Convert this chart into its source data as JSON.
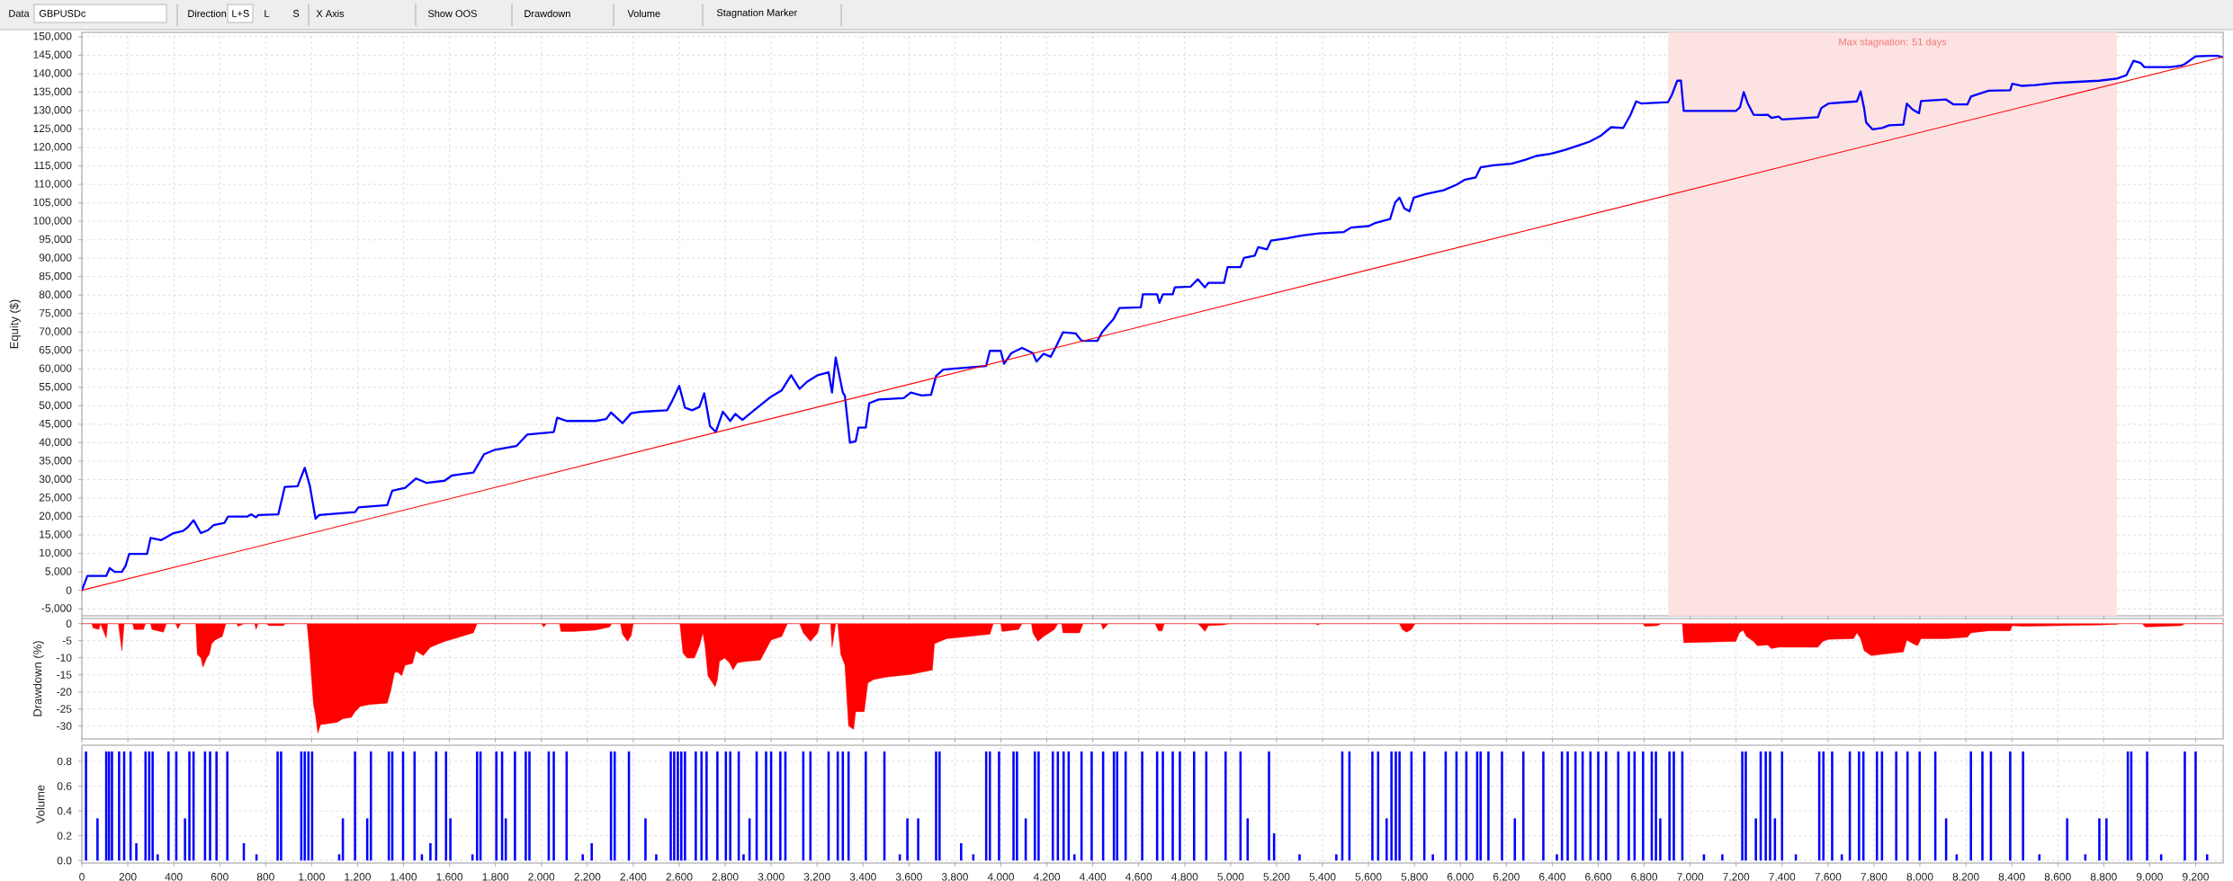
{
  "chart_data": [
    {
      "type": "line",
      "ylabel": "Equity ($)",
      "annotations": [
        "Data",
        "GBPUSDc",
        "Direction",
        "L+S",
        "L",
        "S",
        "X Axis",
        "Show OOS",
        "Drawdown",
        "Volume",
        "Stagnation Marker"
      ],
      "xlim": [
        0,
        9320
      ],
      "ylim": [
        -6900,
        151200
      ],
      "xticks": [
        0,
        200,
        400,
        600,
        800,
        1000,
        1200,
        1400,
        1600,
        1800,
        2000,
        2200,
        2400,
        2600,
        2800,
        3000,
        3200,
        3400,
        3600,
        3800,
        4000,
        4200,
        4400,
        4600,
        4800,
        5000,
        5200,
        5400,
        5600,
        5800,
        6000,
        6200,
        6400,
        6600,
        6800,
        7000,
        7200,
        7400,
        7600,
        7800,
        8000,
        8200,
        8400,
        8600,
        8800,
        9000,
        9200
      ],
      "yticks": [
        {
          "value": -5000,
          "label": "-5,000"
        },
        0,
        {
          "value": 5000,
          "label": "5,000"
        },
        {
          "value": 10000,
          "label": "10,000"
        },
        {
          "value": 15000,
          "label": "15,000"
        },
        {
          "value": 20000,
          "label": "20,000"
        },
        {
          "value": 25000,
          "label": "25,000"
        },
        {
          "value": 30000,
          "label": "30,000"
        },
        {
          "value": 35000,
          "label": "35,000"
        },
        {
          "value": 40000,
          "label": "40,000"
        },
        {
          "value": 45000,
          "label": "45,000"
        },
        {
          "value": 50000,
          "label": "50,000"
        },
        {
          "value": 55000,
          "label": "55,000"
        },
        {
          "value": 60000,
          "label": "60,000"
        },
        {
          "value": 65000,
          "label": "65,000"
        },
        {
          "value": 70000,
          "label": "70,000"
        },
        {
          "value": 75000,
          "label": "75,000"
        },
        {
          "value": 80000,
          "label": "80,000"
        },
        {
          "value": 85000,
          "label": "85,000"
        },
        {
          "value": 90000,
          "label": "90,000"
        },
        {
          "value": 95000,
          "label": "95,000"
        },
        {
          "value": 100000,
          "label": "100,000"
        },
        {
          "value": 105000,
          "label": "105,000"
        },
        {
          "value": 110000,
          "label": "110,000"
        },
        {
          "value": 115000,
          "label": "115,000"
        },
        {
          "value": 120000,
          "label": "120,000"
        },
        {
          "value": 125000,
          "label": "125,000"
        },
        {
          "value": 130000,
          "label": "130,000"
        },
        {
          "value": 135000,
          "label": "135,000"
        },
        {
          "value": 140000,
          "label": "140,000"
        },
        {
          "value": 145000,
          "label": "145,000"
        },
        {
          "value": 150000,
          "label": "150,000"
        }
      ],
      "grid": true,
      "tick_labels": "y",
      "bands": [
        {
          "axis": "x",
          "from": 6904,
          "to": 8858,
          "label": "Max stagnation: 51 days",
          "color": "#fde2e2"
        }
      ],
      "x": [
        0,
        24,
        106,
        121,
        143,
        174,
        190,
        206,
        284,
        299,
        346,
        399,
        440,
        461,
        486,
        518,
        549,
        574,
        621,
        636,
        721,
        736,
        758,
        768,
        855,
        883,
        939,
        970,
        992,
        1017,
        1033,
        1189,
        1204,
        1329,
        1351,
        1407,
        1454,
        1501,
        1579,
        1610,
        1704,
        1751,
        1798,
        1891,
        1938,
        2001,
        2054,
        2069,
        2110,
        2235,
        2282,
        2303,
        2353,
        2391,
        2438,
        2547,
        2569,
        2600,
        2625,
        2656,
        2688,
        2709,
        2734,
        2759,
        2790,
        2822,
        2844,
        2875,
        2922,
        3000,
        3046,
        3087,
        3124,
        3156,
        3203,
        3250,
        3265,
        3281,
        3312,
        3321,
        3343,
        3368,
        3380,
        3412,
        3427,
        3468,
        3577,
        3608,
        3655,
        3696,
        3718,
        3749,
        3936,
        3952,
        3999,
        4014,
        4046,
        4092,
        4139,
        4155,
        4186,
        4217,
        4242,
        4270,
        4326,
        4351,
        4420,
        4442,
        4489,
        4516,
        4609,
        4618,
        4680,
        4690,
        4705,
        4748,
        4757,
        4826,
        4857,
        4888,
        4903,
        4971,
        4987,
        5043,
        5058,
        5105,
        5120,
        5158,
        5176,
        5244,
        5307,
        5384,
        5493,
        5524,
        5601,
        5632,
        5694,
        5716,
        5735,
        5756,
        5778,
        5797,
        5849,
        5927,
        5983,
        6020,
        6067,
        6088,
        6144,
        6222,
        6284,
        6330,
        6392,
        6454,
        6516,
        6563,
        6609,
        6656,
        6709,
        6740,
        6765,
        6789,
        6904,
        6920,
        6944,
        6960,
        6972,
        7199,
        7217,
        7233,
        7251,
        7276,
        7307,
        7338,
        7354,
        7385,
        7400,
        7556,
        7571,
        7602,
        7726,
        7742,
        7757,
        7766,
        7794,
        7835,
        7866,
        7928,
        7943,
        7968,
        7996,
        8005,
        8114,
        8145,
        8207,
        8222,
        8269,
        8300,
        8393,
        8402,
        8446,
        8502,
        8595,
        8781,
        8858,
        8899,
        8930,
        8961,
        8976,
        9091,
        9138,
        9153,
        9200,
        9293,
        9317
      ],
      "series": [
        {
          "color": "#0000ff",
          "values": [
            0,
            3900,
            3900,
            6000,
            5000,
            5000,
            6600,
            9900,
            9900,
            14200,
            13600,
            15500,
            16100,
            17100,
            19000,
            15500,
            16300,
            17700,
            18300,
            20000,
            20000,
            20600,
            19800,
            20400,
            20600,
            28000,
            28200,
            33200,
            28400,
            19400,
            20400,
            21200,
            22500,
            23100,
            27000,
            27800,
            30300,
            29100,
            29700,
            31100,
            31900,
            36900,
            38100,
            39100,
            42200,
            42600,
            42900,
            46800,
            45900,
            45900,
            46400,
            48200,
            45300,
            48000,
            48400,
            48800,
            51300,
            55400,
            49500,
            48800,
            49700,
            53400,
            44500,
            42900,
            48400,
            45900,
            47800,
            46200,
            48600,
            52500,
            54200,
            58300,
            54600,
            56500,
            58300,
            59100,
            53600,
            63100,
            53600,
            52700,
            40000,
            40400,
            44100,
            44100,
            50700,
            51700,
            52100,
            53600,
            52800,
            53000,
            58100,
            59800,
            60800,
            64900,
            64900,
            61400,
            64300,
            65700,
            64300,
            62000,
            64100,
            63300,
            66300,
            69900,
            69600,
            67600,
            67600,
            70100,
            73400,
            76500,
            76700,
            80200,
            80200,
            77900,
            80200,
            80200,
            82100,
            82300,
            84300,
            82100,
            83300,
            83300,
            87600,
            87600,
            90100,
            90700,
            93000,
            92400,
            94800,
            95400,
            96100,
            96700,
            97100,
            98300,
            98700,
            99600,
            100600,
            105100,
            106400,
            103500,
            102700,
            106400,
            107400,
            108400,
            109900,
            111300,
            111900,
            114600,
            115200,
            115600,
            116700,
            117700,
            118300,
            119300,
            120600,
            121600,
            123100,
            125500,
            125300,
            128800,
            132500,
            131900,
            132300,
            134200,
            138100,
            138100,
            129900,
            129900,
            130900,
            135000,
            131900,
            128900,
            128800,
            128900,
            128000,
            128400,
            127600,
            128200,
            130700,
            131900,
            132500,
            135200,
            130700,
            126800,
            124900,
            125300,
            126000,
            126200,
            131900,
            130300,
            129300,
            132600,
            133000,
            131700,
            131700,
            133800,
            134800,
            135400,
            135500,
            137300,
            136700,
            136900,
            137500,
            138100,
            138700,
            139600,
            143500,
            142900,
            141800,
            141800,
            142200,
            142600,
            144700,
            144900,
            144500
          ]
        },
        {
          "type": "line",
          "color": "#ff0000",
          "x": [
            0,
            9317
          ],
          "values": [
            0,
            144500
          ]
        }
      ]
    },
    {
      "type": "area",
      "ylabel": "Drawdown (%)",
      "color": "#ff0000",
      "xlim": [
        0,
        9320
      ],
      "ylim": [
        -33.8,
        1.5
      ],
      "xticks": [
        0,
        200,
        400,
        600,
        800,
        1000,
        1200,
        1400,
        1600,
        1800,
        2000,
        2200,
        2400,
        2600,
        2800,
        3000,
        3200,
        3400,
        3600,
        3800,
        4000,
        4200,
        4400,
        4600,
        4800,
        5000,
        5200,
        5400,
        5600,
        5800,
        6000,
        6200,
        6400,
        6600,
        6800,
        7000,
        7200,
        7400,
        7600,
        7800,
        8000,
        8200,
        8400,
        8600,
        8800,
        9000,
        9200
      ],
      "yticks": [
        -30,
        -25,
        -20,
        -15,
        -10,
        -5,
        0
      ],
      "grid": true,
      "tick_labels": "y",
      "x": [
        0,
        43,
        49,
        74,
        81,
        106,
        112,
        159,
        174,
        184,
        221,
        227,
        268,
        277,
        299,
        305,
        355,
        368,
        408,
        418,
        430,
        496,
        502,
        518,
        527,
        543,
        555,
        565,
        580,
        611,
        627,
        674,
        680,
        705,
        752,
        758,
        767,
        805,
        814,
        877,
        886,
        980,
        992,
        1008,
        1017,
        1027,
        1039,
        1064,
        1111,
        1136,
        1173,
        1189,
        1211,
        1251,
        1329,
        1345,
        1361,
        1376,
        1392,
        1407,
        1439,
        1454,
        1486,
        1517,
        1579,
        1642,
        1704,
        1720,
        2001,
        2010,
        2022,
        2079,
        2085,
        2141,
        2235,
        2297,
        2306,
        2344,
        2353,
        2375,
        2391,
        2400,
        2603,
        2616,
        2634,
        2666,
        2688,
        2703,
        2712,
        2725,
        2756,
        2766,
        2775,
        2797,
        2819,
        2834,
        2853,
        2891,
        2953,
        3000,
        3046,
        3071,
        3124,
        3140,
        3171,
        3203,
        3212,
        3259,
        3265,
        3281,
        3290,
        3303,
        3321,
        3337,
        3359,
        3368,
        3405,
        3421,
        3446,
        3499,
        3608,
        3702,
        3711,
        3764,
        3858,
        3952,
        3967,
        3999,
        4005,
        4077,
        4092,
        4133,
        4139,
        4161,
        4186,
        4233,
        4248,
        4264,
        4270,
        4342,
        4358,
        4436,
        4445,
        4467,
        4671,
        4686,
        4702,
        4711,
        4857,
        4872,
        4888,
        4903,
        4965,
        4996,
        5369,
        5378,
        5390,
        5735,
        5747,
        5766,
        5787,
        5803,
        6795,
        6802,
        6858,
        6873,
        6966,
        6972,
        7199,
        7214,
        7230,
        7245,
        7276,
        7292,
        7338,
        7354,
        7385,
        7556,
        7577,
        7602,
        7711,
        7726,
        7742,
        7757,
        7788,
        7835,
        7928,
        7943,
        7968,
        7990,
        8005,
        8114,
        8207,
        8222,
        8300,
        8393,
        8402,
        8446,
        8781,
        8858,
        8868,
        8967,
        8982,
        9138,
        9153,
        9317
      ],
      "values": [
        0,
        0,
        -1.3,
        -1.7,
        0,
        -4.2,
        0,
        0,
        -8,
        0,
        0,
        -1.7,
        -1.7,
        0,
        0,
        -1.7,
        -2.5,
        0,
        0,
        -1.5,
        0,
        0,
        -9,
        -10.1,
        -12.8,
        -10.1,
        -9,
        -5.9,
        -4.8,
        -3.8,
        0,
        0,
        -0.8,
        0,
        0,
        -1.7,
        0,
        0,
        -0.6,
        -0.6,
        0,
        0,
        -9,
        -23.7,
        -26.9,
        -32.1,
        -29.6,
        -29.4,
        -28.9,
        -27.9,
        -27.5,
        -25.8,
        -24.3,
        -23.7,
        -23.3,
        -19.5,
        -14.3,
        -14.3,
        -15.3,
        -12.2,
        -11.7,
        -8,
        -9.4,
        -6.9,
        -5.2,
        -4,
        -2.7,
        0,
        0,
        -1,
        0,
        0,
        -2.3,
        -2.3,
        -1.9,
        -1,
        0,
        0,
        -3.1,
        -5.2,
        -3.5,
        0,
        0,
        -8.6,
        -10.1,
        -10.1,
        -6.5,
        -2.7,
        -6.5,
        -15.3,
        -18.5,
        -16.4,
        -11.1,
        -10.1,
        -11.5,
        -13.6,
        -11.5,
        -11.1,
        -10.7,
        -4.8,
        -3.8,
        0,
        0,
        -2.7,
        -5.2,
        -2.7,
        0,
        0,
        -6.9,
        0,
        0,
        -9,
        -12.2,
        -30,
        -31,
        -25.8,
        -25.8,
        -17.4,
        -16.4,
        -15.7,
        -14.9,
        -13.6,
        -5.9,
        -4.4,
        -3.8,
        -3.1,
        0,
        0,
        -2.3,
        -1.7,
        0,
        0,
        -2.7,
        -5.2,
        -3.8,
        -1.7,
        0,
        0,
        -2.7,
        -2.7,
        0,
        0,
        -1.7,
        0,
        0,
        -2.1,
        -2.1,
        0,
        0,
        -1,
        -2.3,
        -0.6,
        -0.4,
        0,
        0,
        -0.4,
        0,
        0,
        -1.7,
        -2.5,
        -1.7,
        0,
        0,
        -0.8,
        -0.6,
        0,
        0,
        -5.6,
        -5.2,
        -2.7,
        -1.9,
        -3.8,
        -5.2,
        -6.5,
        -6.3,
        -7.3,
        -6.9,
        -6.9,
        -5.2,
        -4.6,
        -4.4,
        -2.7,
        -4.4,
        -7.9,
        -9.4,
        -9,
        -8.3,
        -4.8,
        -5.8,
        -6.5,
        -4.4,
        -4.4,
        -4,
        -2.7,
        -2.1,
        -2.1,
        -0.6,
        -0.8,
        -0.4,
        -0.2,
        0,
        0,
        -1,
        -0.6,
        0,
        0
      ]
    },
    {
      "type": "bar",
      "ylabel": "Volume",
      "color": "#0000ff",
      "xlim": [
        0,
        9320
      ],
      "ylim": [
        -0.02,
        0.93
      ],
      "xticks": [
        0,
        200,
        400,
        600,
        800,
        {
          "value": 1000,
          "label": "1,000"
        },
        {
          "value": 1200,
          "label": "1,200"
        },
        {
          "value": 1400,
          "label": "1,400"
        },
        {
          "value": 1600,
          "label": "1,600"
        },
        {
          "value": 1800,
          "label": "1,800"
        },
        {
          "value": 2000,
          "label": "2,000"
        },
        {
          "value": 2200,
          "label": "2,200"
        },
        {
          "value": 2400,
          "label": "2,400"
        },
        {
          "value": 2600,
          "label": "2,600"
        },
        {
          "value": 2800,
          "label": "2,800"
        },
        {
          "value": 3000,
          "label": "3,000"
        },
        {
          "value": 3200,
          "label": "3,200"
        },
        {
          "value": 3400,
          "label": "3,400"
        },
        {
          "value": 3600,
          "label": "3,600"
        },
        {
          "value": 3800,
          "label": "3,800"
        },
        {
          "value": 4000,
          "label": "4,000"
        },
        {
          "value": 4200,
          "label": "4,200"
        },
        {
          "value": 4400,
          "label": "4,400"
        },
        {
          "value": 4600,
          "label": "4,600"
        },
        {
          "value": 4800,
          "label": "4,800"
        },
        {
          "value": 5000,
          "label": "5,000"
        },
        {
          "value": 5200,
          "label": "5,200"
        },
        {
          "value": 5400,
          "label": "5,400"
        },
        {
          "value": 5600,
          "label": "5,600"
        },
        {
          "value": 5800,
          "label": "5,800"
        },
        {
          "value": 6000,
          "label": "6,000"
        },
        {
          "value": 6200,
          "label": "6,200"
        },
        {
          "value": 6400,
          "label": "6,400"
        },
        {
          "value": 6600,
          "label": "6,600"
        },
        {
          "value": 6800,
          "label": "6,800"
        },
        {
          "value": 7000,
          "label": "7,000"
        },
        {
          "value": 7200,
          "label": "7,200"
        },
        {
          "value": 7400,
          "label": "7,400"
        },
        {
          "value": 7600,
          "label": "7,600"
        },
        {
          "value": 7800,
          "label": "7,800"
        },
        {
          "value": 8000,
          "label": "8,000"
        },
        {
          "value": 8200,
          "label": "8,200"
        },
        {
          "value": 8400,
          "label": "8,400"
        },
        {
          "value": 8600,
          "label": "8,600"
        },
        {
          "value": 8800,
          "label": "8,800"
        },
        {
          "value": 9000,
          "label": "9,000"
        },
        {
          "value": 9200,
          "label": "9,200"
        }
      ],
      "yticks": [
        {
          "value": 0,
          "label": "0.0"
        },
        0.2,
        0.4,
        0.6,
        0.8
      ],
      "grid": true,
      "x": [
        18,
        68,
        106,
        118,
        131,
        162,
        184,
        212,
        237,
        277,
        293,
        308,
        330,
        377,
        411,
        449,
        468,
        486,
        536,
        558,
        586,
        633,
        705,
        760,
        852,
        867,
        955,
        970,
        986,
        1002,
        1120,
        1136,
        1189,
        1242,
        1258,
        1336,
        1351,
        1398,
        1448,
        1480,
        1517,
        1542,
        1585,
        1604,
        1700,
        1720,
        1735,
        1804,
        1829,
        1845,
        1885,
        1932,
        1948,
        2032,
        2054,
        2110,
        2180,
        2219,
        2303,
        2319,
        2381,
        2453,
        2500,
        2563,
        2578,
        2594,
        2609,
        2625,
        2672,
        2697,
        2719,
        2766,
        2803,
        2822,
        2859,
        2880,
        2906,
        2937,
        2978,
        3000,
        3040,
        3062,
        3140,
        3171,
        3250,
        3290,
        3312,
        3337,
        3412,
        3493,
        3560,
        3593,
        3640,
        3718,
        3733,
        3827,
        3880,
        3936,
        3952,
        3992,
        4055,
        4070,
        4108,
        4148,
        4164,
        4226,
        4248,
        4273,
        4295,
        4320,
        4351,
        4395,
        4445,
        4492,
        4506,
        4543,
        4615,
        4680,
        4705,
        4748,
        4779,
        4841,
        4894,
        4978,
        5043,
        5074,
        5167,
        5189,
        5300,
        5460,
        5486,
        5517,
        5617,
        5642,
        5679,
        5700,
        5719,
        5735,
        5787,
        5843,
        5880,
        5936,
        5983,
        6026,
        6073,
        6088,
        6122,
        6181,
        6237,
        6274,
        6361,
        6420,
        6442,
        6467,
        6501,
        6532,
        6566,
        6600,
        6634,
        6687,
        6733,
        6758,
        6795,
        6833,
        6851,
        6870,
        6910,
        6929,
        6966,
        7060,
        7140,
        7227,
        7242,
        7286,
        7307,
        7329,
        7348,
        7369,
        7400,
        7460,
        7562,
        7580,
        7618,
        7660,
        7695,
        7735,
        7754,
        7813,
        7835,
        7897,
        7946,
        7999,
        8067,
        8114,
        8160,
        8222,
        8272,
        8309,
        8393,
        8449,
        8520,
        8641,
        8720,
        8781,
        8812,
        8905,
        8920,
        8989,
        9050,
        9153,
        9200,
        9250
      ],
      "values": [
        0.88,
        0.34,
        0.88,
        0.88,
        0.88,
        0.88,
        0.88,
        0.88,
        0.14,
        0.88,
        0.88,
        0.88,
        0.05,
        0.88,
        0.88,
        0.34,
        0.88,
        0.88,
        0.88,
        0.88,
        0.88,
        0.88,
        0.14,
        0.05,
        0.88,
        0.88,
        0.88,
        0.88,
        0.88,
        0.88,
        0.05,
        0.34,
        0.88,
        0.34,
        0.88,
        0.88,
        0.88,
        0.88,
        0.88,
        0.05,
        0.14,
        0.88,
        0.88,
        0.34,
        0.05,
        0.88,
        0.88,
        0.88,
        0.88,
        0.34,
        0.88,
        0.88,
        0.88,
        0.88,
        0.88,
        0.88,
        0.05,
        0.14,
        0.88,
        0.88,
        0.88,
        0.34,
        0.05,
        0.88,
        0.88,
        0.88,
        0.88,
        0.88,
        0.88,
        0.88,
        0.88,
        0.88,
        0.88,
        0.88,
        0.88,
        0.05,
        0.34,
        0.88,
        0.88,
        0.88,
        0.88,
        0.88,
        0.88,
        0.88,
        0.88,
        0.88,
        0.88,
        0.88,
        0.88,
        0.88,
        0.05,
        0.34,
        0.34,
        0.88,
        0.88,
        0.14,
        0.05,
        0.88,
        0.88,
        0.88,
        0.88,
        0.88,
        0.34,
        0.88,
        0.88,
        0.88,
        0.88,
        0.88,
        0.88,
        0.05,
        0.88,
        0.88,
        0.88,
        0.88,
        0.88,
        0.88,
        0.88,
        0.88,
        0.88,
        0.88,
        0.88,
        0.88,
        0.88,
        0.88,
        0.88,
        0.34,
        0.88,
        0.22,
        0.05,
        0.05,
        0.88,
        0.88,
        0.88,
        0.88,
        0.34,
        0.88,
        0.88,
        0.88,
        0.88,
        0.88,
        0.05,
        0.88,
        0.88,
        0.88,
        0.88,
        0.88,
        0.88,
        0.88,
        0.34,
        0.88,
        0.88,
        0.05,
        0.88,
        0.88,
        0.88,
        0.88,
        0.88,
        0.88,
        0.88,
        0.88,
        0.88,
        0.88,
        0.88,
        0.88,
        0.88,
        0.34,
        0.88,
        0.88,
        0.88,
        0.05,
        0.05,
        0.88,
        0.88,
        0.34,
        0.88,
        0.88,
        0.88,
        0.34,
        0.88,
        0.05,
        0.88,
        0.88,
        0.88,
        0.05,
        0.88,
        0.88,
        0.88,
        0.88,
        0.88,
        0.88,
        0.88,
        0.88,
        0.88,
        0.34,
        0.05,
        0.88,
        0.88,
        0.88,
        0.88,
        0.88,
        0.05,
        0.34,
        0.05,
        0.34,
        0.34,
        0.88,
        0.88,
        0.88,
        0.05,
        0.88,
        0.88,
        0.05
      ]
    }
  ]
}
